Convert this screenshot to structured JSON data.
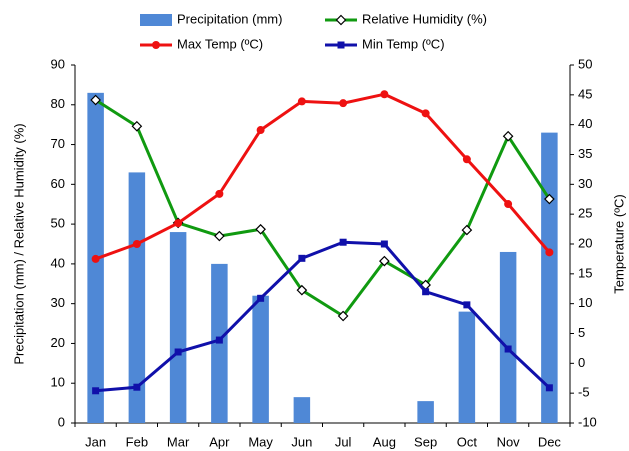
{
  "chart_data": {
    "type": "bar",
    "categories": [
      "Jan",
      "Feb",
      "Mar",
      "Apr",
      "May",
      "Jun",
      "Jul",
      "Aug",
      "Sep",
      "Oct",
      "Nov",
      "Dec"
    ],
    "y_label": "Precipitation (mm) / Relative Humidity (%)",
    "y2_label": "Temperature (ºC)",
    "ylim": [
      0,
      90
    ],
    "yticks": [
      0,
      10,
      20,
      30,
      40,
      50,
      60,
      70,
      80,
      90
    ],
    "y2lim": [
      -10,
      50
    ],
    "y2ticks": [
      -10,
      -5,
      0,
      5,
      10,
      15,
      20,
      25,
      30,
      35,
      40,
      45,
      50
    ],
    "legend": "top",
    "series": [
      {
        "name": "Precipitation (mm)",
        "type": "bar",
        "color": "#4f88d6",
        "values": [
          83,
          63,
          48,
          40,
          32,
          6.5,
          0,
          0,
          5.5,
          28,
          43,
          73
        ]
      },
      {
        "name": "Relative Humidity (%)",
        "type": "line",
        "marker": "diamond",
        "color": "#109a10",
        "values": [
          81.2,
          74.6,
          50.3,
          47,
          48.7,
          33.4,
          26.9,
          40.7,
          34.7,
          48.5,
          72.1,
          56.3
        ]
      },
      {
        "name": "Max Temp (ºC)",
        "type": "line",
        "marker": "circle",
        "axis": "y2",
        "color": "#ee1111",
        "values": [
          17.5,
          20,
          23.5,
          28.4,
          39.1,
          43.9,
          43.6,
          45.1,
          41.9,
          34.2,
          26.7,
          18.6
        ]
      },
      {
        "name": "Min Temp (ºC)",
        "type": "line",
        "marker": "square",
        "axis": "y2",
        "color": "#1010aa",
        "values": [
          -4.6,
          -4,
          1.9,
          3.9,
          10.9,
          17.6,
          20.3,
          20,
          12,
          9.8,
          2.4,
          -4.1
        ]
      }
    ]
  }
}
